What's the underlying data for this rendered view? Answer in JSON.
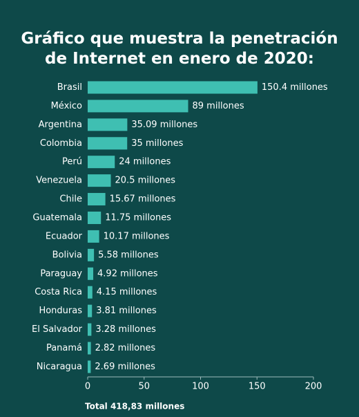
{
  "chart_data": {
    "type": "bar",
    "orientation": "horizontal",
    "title": "Gráfico que muestra la penetración de Internet en enero de 2020:",
    "categories": [
      "Brasil",
      "México",
      "Argentina",
      "Colombia",
      "Perú",
      "Venezuela",
      "Chile",
      "Guatemala",
      "Ecuador",
      "Bolivia",
      "Paraguay",
      "Costa Rica",
      "Honduras",
      "El Salvador",
      "Panamá",
      "Nicaragua"
    ],
    "values": [
      150.4,
      89,
      35.09,
      35,
      24,
      20.5,
      15.67,
      11.75,
      10.17,
      5.58,
      4.92,
      4.15,
      3.81,
      3.28,
      2.82,
      2.69
    ],
    "value_labels": [
      "150.4 millones",
      "89 millones",
      "35.09 millones",
      "35 millones",
      "24 millones",
      "20.5 millones",
      "15.67 millones",
      "11.75 millones",
      "10.17 millones",
      "5.58 millones",
      "4.92 millones",
      "4.15 millones",
      "3.81 millones",
      "3.28 millones",
      "2.82 millones",
      "2.69 millones"
    ],
    "color": "#3fbfb2",
    "xlim": [
      0,
      200
    ],
    "xticks": [
      0,
      50,
      100,
      150,
      200
    ],
    "annotation": "Total 418,83 millones"
  }
}
